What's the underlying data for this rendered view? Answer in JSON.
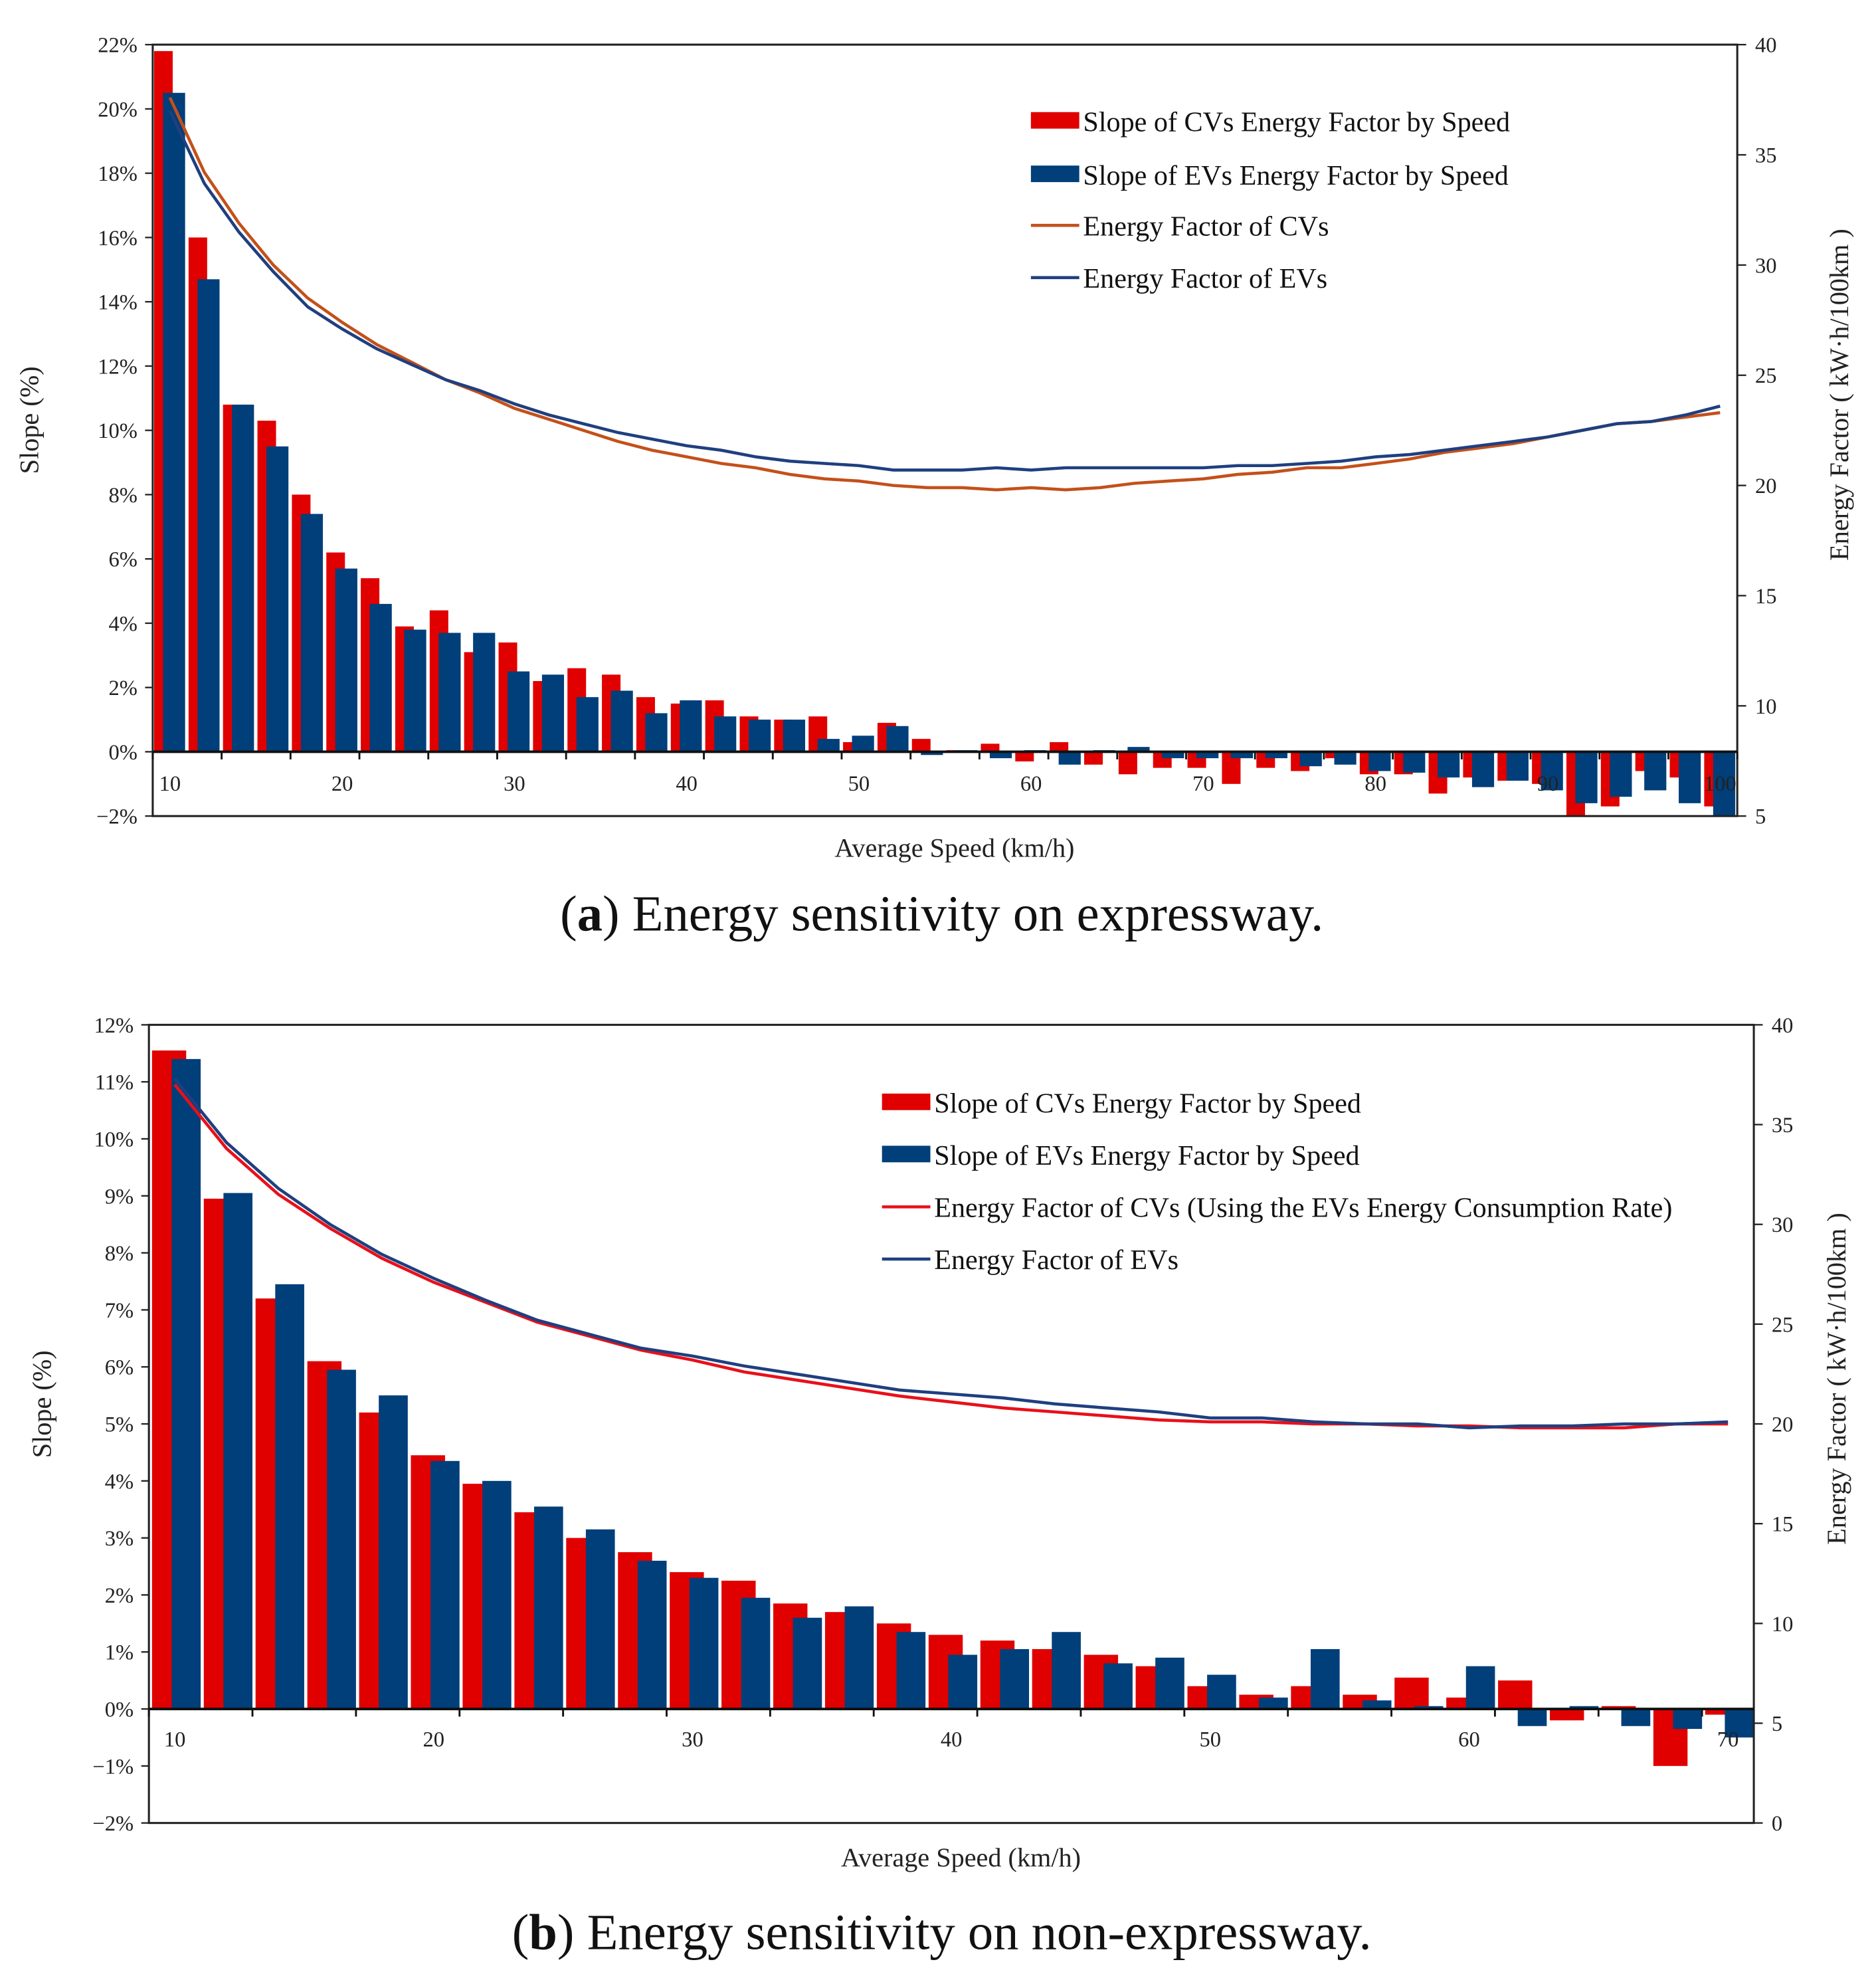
{
  "colors": {
    "cv_bar": "#e00000",
    "ev_bar": "#003f7a",
    "cv_line_a": "#c4501a",
    "cv_line_b": "#e8101a",
    "ev_line": "#1f3f7f"
  },
  "chart_data": [
    {
      "type": "bar+line",
      "caption": {
        "open": "(",
        "label": "a",
        "text": ") Energy sensitivity on expressway."
      },
      "xlabel": "Average Speed (km/h)",
      "ylabel": "Slope (%)",
      "y2label": "Energy Factor ( kW·h/100km )",
      "ylim": [
        -2,
        22
      ],
      "y2lim": [
        5,
        40
      ],
      "yticks": [
        "−2%",
        "0%",
        "2%",
        "4%",
        "6%",
        "8%",
        "10%",
        "12%",
        "14%",
        "16%",
        "18%",
        "20%",
        "22%"
      ],
      "y2ticks": [
        "5",
        "10",
        "15",
        "20",
        "25",
        "30",
        "35",
        "40"
      ],
      "xticks": [
        "10",
        "20",
        "30",
        "40",
        "50",
        "60",
        "70",
        "80",
        "90",
        "100"
      ],
      "legend_position": "top-right",
      "x": [
        10,
        12,
        14,
        16,
        18,
        20,
        22,
        24,
        26,
        28,
        30,
        32,
        34,
        36,
        38,
        40,
        42,
        44,
        46,
        48,
        50,
        52,
        54,
        56,
        58,
        60,
        62,
        64,
        66,
        68,
        70,
        72,
        74,
        76,
        78,
        80,
        82,
        84,
        86,
        88,
        90,
        92,
        94,
        96,
        98,
        100
      ],
      "series": [
        {
          "name": "Slope of CVs Energy Factor by Speed",
          "kind": "bar",
          "axis": "left",
          "values": [
            21.8,
            16.0,
            10.8,
            10.3,
            8.0,
            6.2,
            5.4,
            3.9,
            4.4,
            3.1,
            3.4,
            2.2,
            2.6,
            2.4,
            1.7,
            1.5,
            1.6,
            1.1,
            1.0,
            1.1,
            0.3,
            0.9,
            0.4,
            0.05,
            0.25,
            -0.3,
            0.3,
            -0.4,
            -0.7,
            -0.5,
            -0.5,
            -1.0,
            -0.5,
            -0.6,
            -0.2,
            -0.7,
            -0.7,
            -1.3,
            -0.8,
            -0.9,
            -1.0,
            -2.0,
            -1.7,
            -0.6,
            -0.8,
            -1.7
          ]
        },
        {
          "name": "Slope of EVs Energy Factor by Speed",
          "kind": "bar",
          "axis": "left",
          "values": [
            20.5,
            14.7,
            10.8,
            9.5,
            7.4,
            5.7,
            4.6,
            3.8,
            3.7,
            3.7,
            2.5,
            2.4,
            1.7,
            1.9,
            1.2,
            1.6,
            1.1,
            1.0,
            1.0,
            0.4,
            0.5,
            0.8,
            -0.1,
            0.05,
            -0.2,
            0.05,
            -0.4,
            0.05,
            0.15,
            -0.2,
            -0.2,
            -0.2,
            -0.2,
            -0.45,
            -0.4,
            -0.6,
            -0.65,
            -0.8,
            -1.1,
            -0.9,
            -1.2,
            -1.6,
            -1.4,
            -1.2,
            -1.6,
            -2.0
          ]
        },
        {
          "name": "Energy Factor of CVs",
          "kind": "line",
          "axis": "right",
          "values": [
            37.6,
            34.2,
            31.9,
            30.0,
            28.5,
            27.4,
            26.4,
            25.6,
            24.8,
            24.2,
            23.5,
            23.0,
            22.5,
            22.0,
            21.6,
            21.3,
            21.0,
            20.8,
            20.5,
            20.3,
            20.2,
            20.0,
            19.9,
            19.9,
            19.8,
            19.9,
            19.8,
            19.9,
            20.1,
            20.2,
            20.3,
            20.5,
            20.6,
            20.8,
            20.8,
            21.0,
            21.2,
            21.5,
            21.7,
            21.9,
            22.2,
            22.5,
            22.8,
            22.9,
            23.1,
            23.3
          ]
        },
        {
          "name": "Energy Factor of EVs",
          "kind": "line",
          "axis": "right",
          "values": [
            37.0,
            33.7,
            31.5,
            29.7,
            28.1,
            27.1,
            26.2,
            25.5,
            24.8,
            24.3,
            23.7,
            23.2,
            22.8,
            22.4,
            22.1,
            21.8,
            21.6,
            21.3,
            21.1,
            21.0,
            20.9,
            20.7,
            20.7,
            20.7,
            20.8,
            20.7,
            20.8,
            20.8,
            20.8,
            20.8,
            20.8,
            20.9,
            20.9,
            21.0,
            21.1,
            21.3,
            21.4,
            21.6,
            21.8,
            22.0,
            22.2,
            22.5,
            22.8,
            22.9,
            23.2,
            23.6
          ]
        }
      ]
    },
    {
      "type": "bar+line",
      "caption": {
        "open": "(",
        "label": "b",
        "text": ") Energy sensitivity on non-expressway."
      },
      "xlabel": "Average Speed (km/h)",
      "ylabel": "Slope (%)",
      "y2label": "Energy Factor ( kW·h/100km )",
      "ylim": [
        -2,
        12
      ],
      "y2lim": [
        0,
        40
      ],
      "yticks": [
        "−2%",
        "−1%",
        "0%",
        "1%",
        "2%",
        "3%",
        "4%",
        "5%",
        "6%",
        "7%",
        "8%",
        "9%",
        "10%",
        "11%",
        "12%"
      ],
      "y2ticks": [
        "0",
        "5",
        "10",
        "15",
        "20",
        "25",
        "30",
        "35",
        "40"
      ],
      "xticks": [
        "10",
        "20",
        "30",
        "40",
        "50",
        "60",
        "70"
      ],
      "legend_position": "top-right",
      "x": [
        10,
        12,
        14,
        16,
        18,
        20,
        22,
        24,
        26,
        28,
        30,
        32,
        34,
        36,
        38,
        40,
        42,
        44,
        46,
        48,
        50,
        52,
        54,
        56,
        58,
        60,
        62,
        64,
        66,
        68,
        70
      ],
      "series": [
        {
          "name": "Slope of CVs Energy Factor by Speed",
          "kind": "bar",
          "axis": "left",
          "values": [
            11.55,
            8.95,
            7.2,
            6.1,
            5.2,
            4.45,
            3.95,
            3.45,
            3.0,
            2.75,
            2.4,
            2.25,
            1.85,
            1.7,
            1.5,
            1.3,
            1.2,
            1.05,
            0.95,
            0.75,
            0.4,
            0.25,
            0.4,
            0.25,
            0.55,
            0.2,
            0.5,
            -0.2,
            0.05,
            -1.0,
            -0.1
          ]
        },
        {
          "name": "Slope of EVs Energy Factor by Speed",
          "kind": "bar",
          "axis": "left",
          "values": [
            11.4,
            9.05,
            7.45,
            5.95,
            5.5,
            4.35,
            4.0,
            3.55,
            3.15,
            2.6,
            2.3,
            1.95,
            1.6,
            1.8,
            1.35,
            0.95,
            1.05,
            1.35,
            0.8,
            0.9,
            0.6,
            0.2,
            1.05,
            0.15,
            0.05,
            0.75,
            -0.3,
            0.05,
            -0.3,
            -0.35,
            -0.5
          ]
        },
        {
          "name": "Energy Factor of CVs (Using the EVs Energy Consumption Rate)",
          "kind": "line",
          "axis": "right",
          "values": [
            37.0,
            33.8,
            31.5,
            29.8,
            28.3,
            27.1,
            26.1,
            25.1,
            24.4,
            23.7,
            23.2,
            22.6,
            22.2,
            21.8,
            21.4,
            21.1,
            20.8,
            20.6,
            20.4,
            20.2,
            20.1,
            20.1,
            20.0,
            20.0,
            19.9,
            19.9,
            19.8,
            19.8,
            19.8,
            20.0,
            20.0
          ]
        },
        {
          "name": "Energy Factor of EVs",
          "kind": "line",
          "axis": "right",
          "values": [
            37.3,
            34.1,
            31.8,
            30.0,
            28.5,
            27.3,
            26.2,
            25.2,
            24.5,
            23.8,
            23.4,
            22.9,
            22.5,
            22.1,
            21.7,
            21.5,
            21.3,
            21.0,
            20.8,
            20.6,
            20.3,
            20.3,
            20.1,
            20.0,
            20.0,
            19.8,
            19.9,
            19.9,
            20.0,
            20.0,
            20.1
          ]
        }
      ]
    }
  ]
}
